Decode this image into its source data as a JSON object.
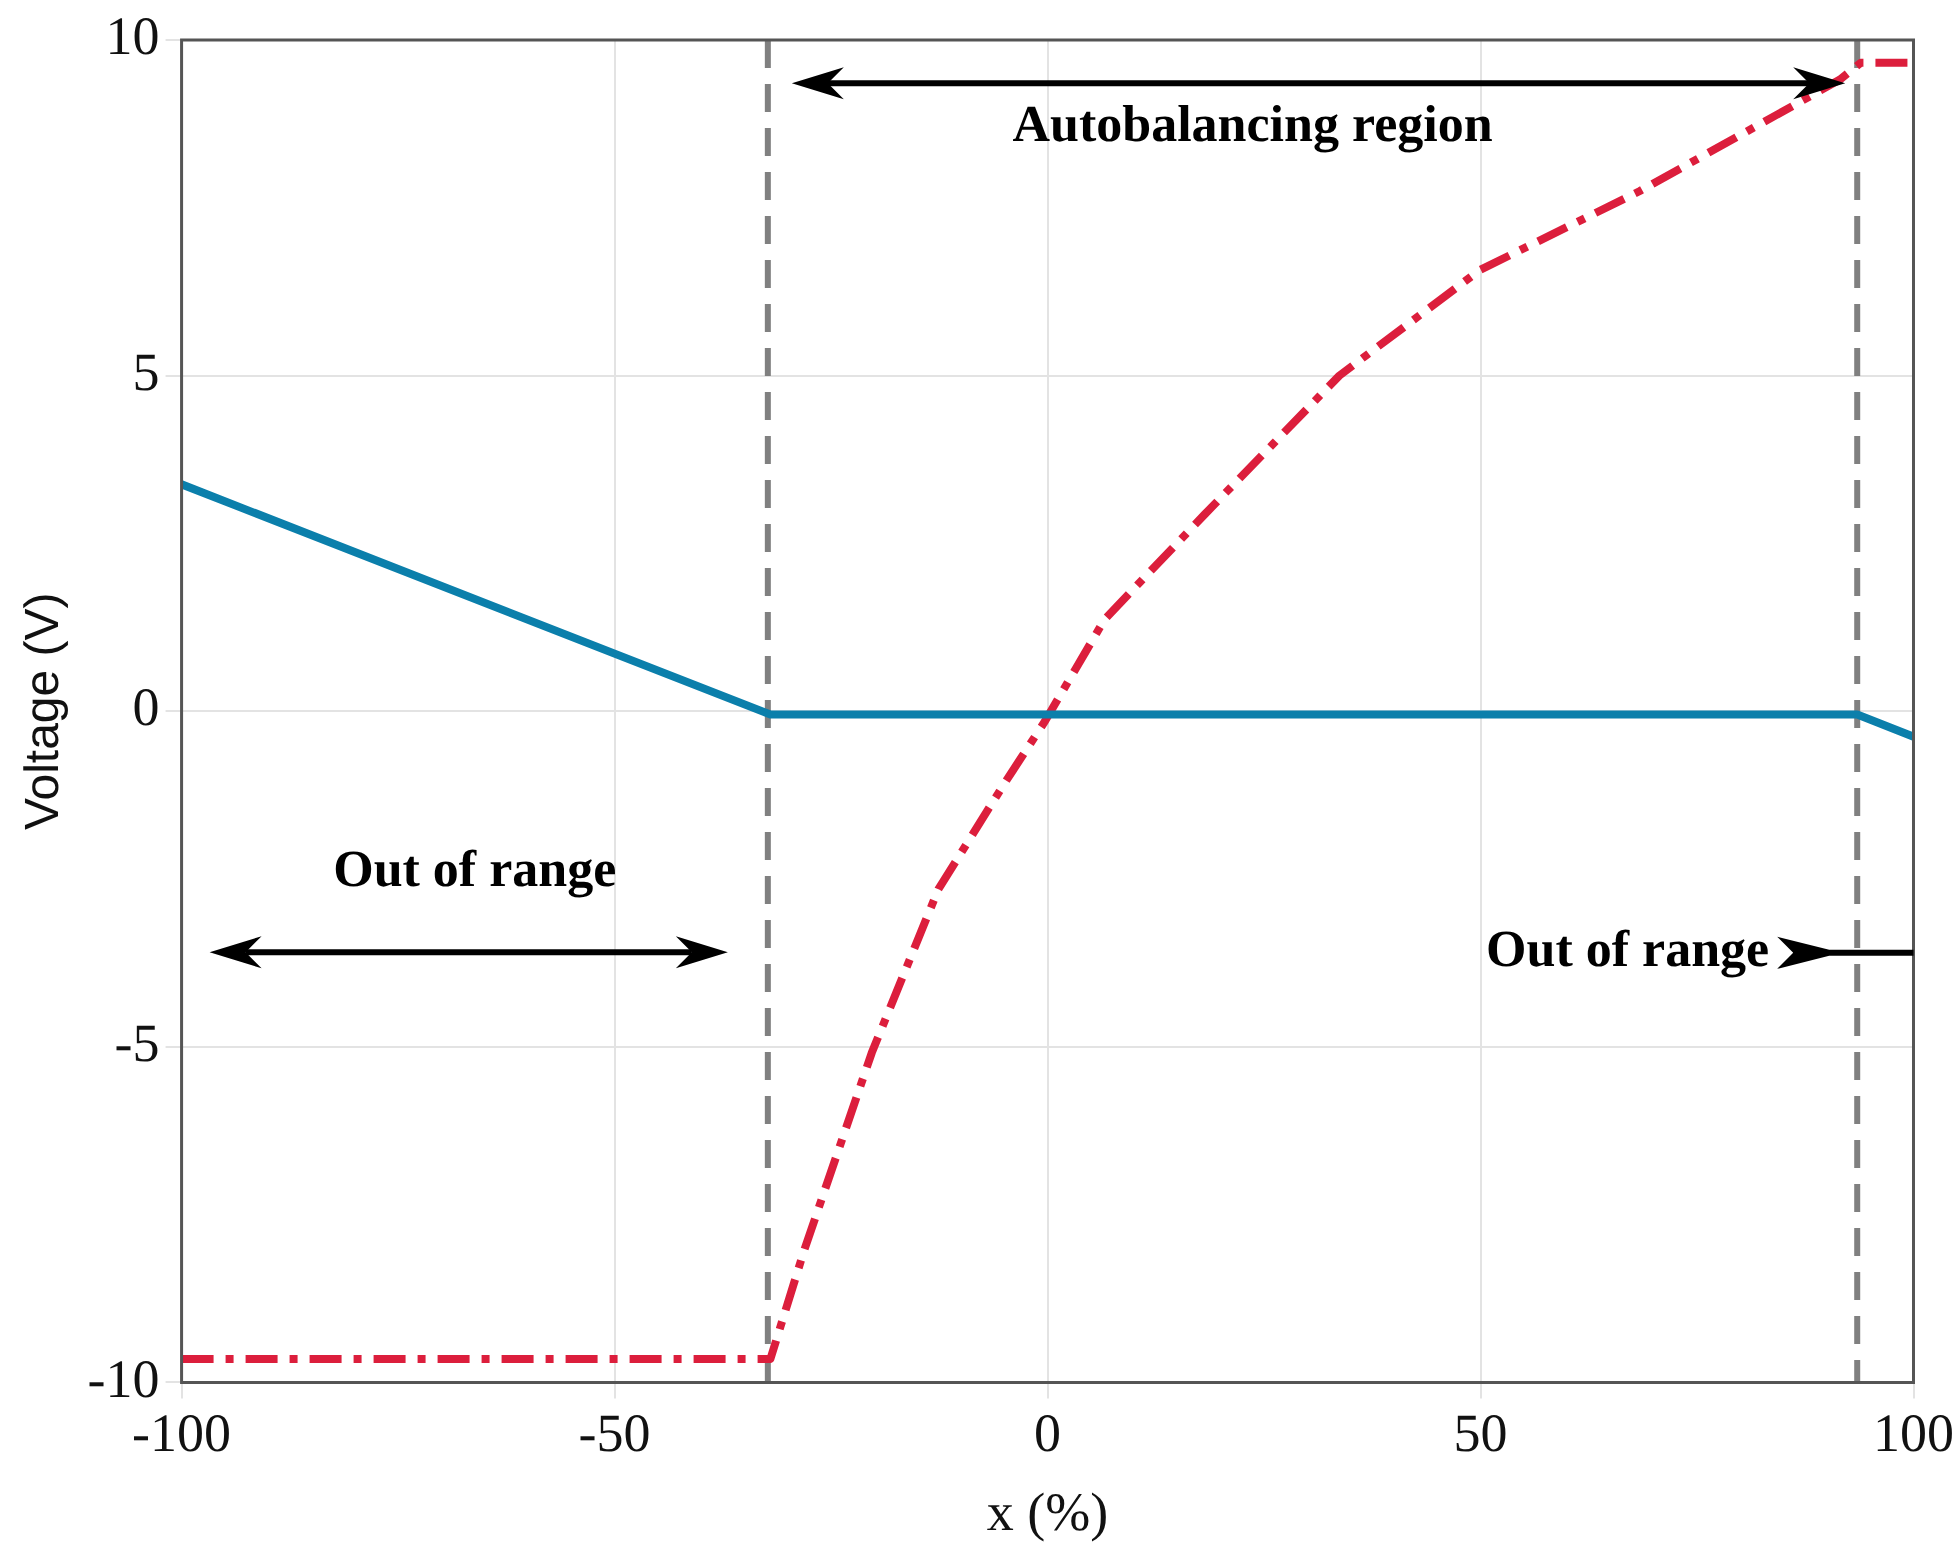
{
  "chart_data": {
    "type": "line",
    "xlabel": "x (%)",
    "ylabel": "Voltage (V)",
    "xlim": [
      -100,
      100
    ],
    "xticks": [
      -100,
      -50,
      0,
      50,
      100
    ],
    "ylim": [
      -10,
      10
    ],
    "yticks": [
      -10,
      -5,
      0,
      5,
      10
    ],
    "grid": true,
    "marker": "none",
    "series": [
      {
        "color": "#0b7fab",
        "line_style": "solid",
        "x": [
          -100,
          -32,
          93.5,
          100
        ],
        "values": [
          3.38,
          -0.05,
          -0.05,
          -0.38
        ]
      },
      {
        "color": "#dc1e3c",
        "line_style": "dashed",
        "x": [
          -100,
          -32,
          -28.1,
          -20.3,
          -12.6,
          -5,
          -0.3,
          6.6,
          18.2,
          33.7,
          49.9,
          68.4,
          91.5,
          93.9,
          100
        ],
        "values": [
          -9.65,
          -9.65,
          -8.03,
          -5.09,
          -2.65,
          -1.08,
          -0.15,
          1.37,
          2.94,
          5,
          6.57,
          7.75,
          9.41,
          9.66,
          9.66
        ]
      }
    ],
    "ref_lines": [
      {
        "axis": "x",
        "value": -32.3,
        "color": "#808080",
        "line_style": "dashed"
      },
      {
        "axis": "x",
        "value": 93.5,
        "color": "#808080",
        "line_style": "dashed"
      }
    ],
    "annotations": [
      "Out of range",
      "Autobalancing region",
      "Out of range"
    ]
  }
}
